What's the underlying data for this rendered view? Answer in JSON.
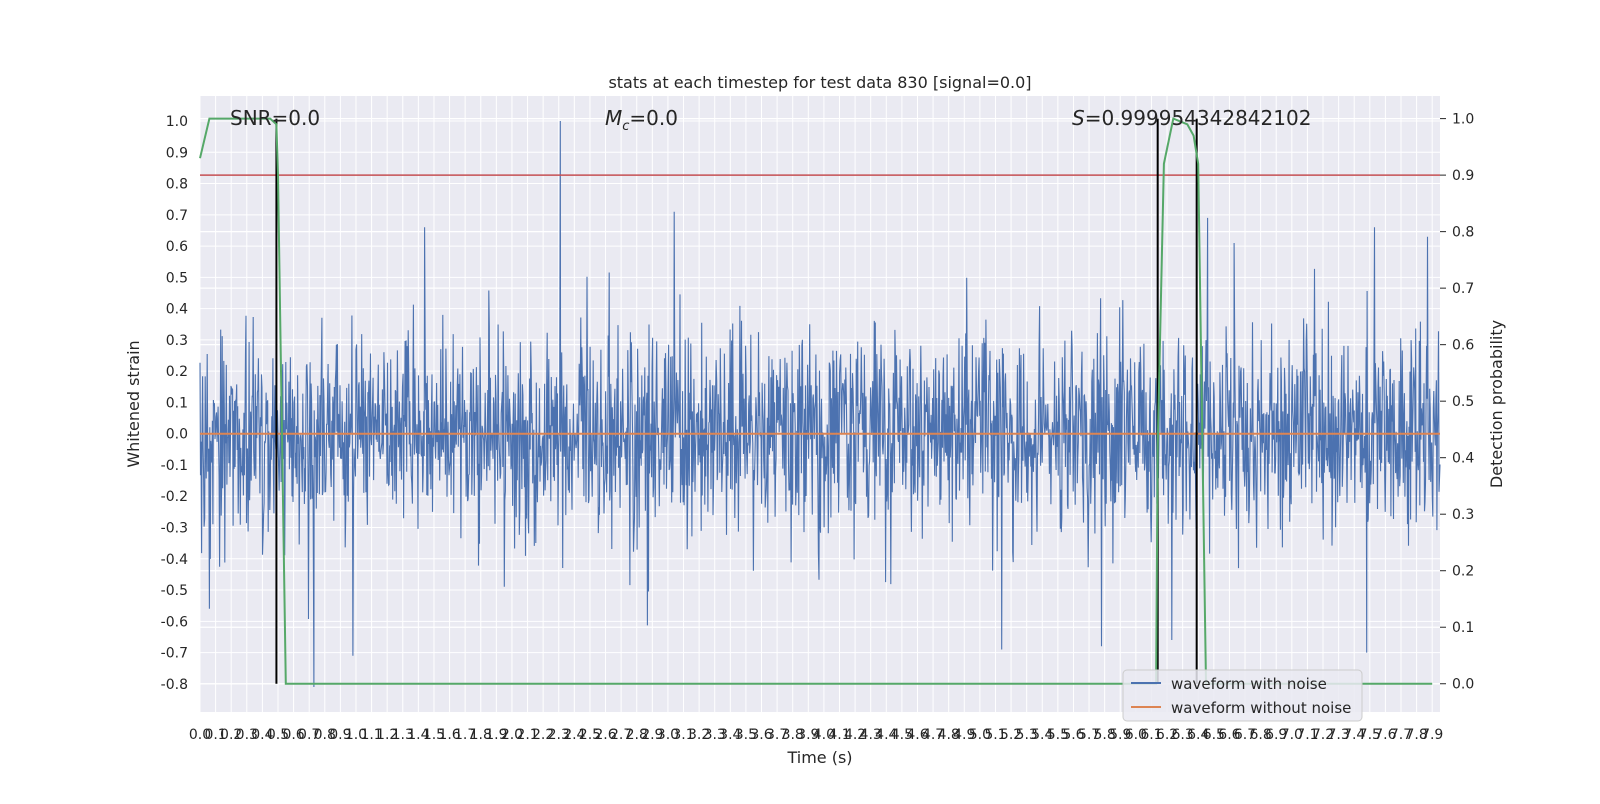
{
  "colors": {
    "background": "#ffffff",
    "plot_bg": "#eaeaf2",
    "grid": "#ffffff",
    "noisy": "#4c72b0",
    "clean": "#dd8452",
    "prob": "#55a868",
    "threshold": "#c44e52",
    "marker": "#000000",
    "text": "#262626"
  },
  "chart_data": {
    "type": "line",
    "title": "stats at each timestep for test data 830 [signal=0.0]",
    "xlabel": "Time (s)",
    "ylabel": "Whitened strain",
    "y2label": "Detection probability",
    "annotations": {
      "snr": "SNR=0.0",
      "mc_symbol": "M",
      "mc_sub": "c",
      "mc_value": "=0.0",
      "s_symbol": "S",
      "s_value": "=0.999954342842102"
    },
    "xlim": [
      0.0,
      7.95
    ],
    "ylim": [
      -0.89,
      1.08
    ],
    "y2lim": [
      -0.05,
      1.04
    ],
    "grid": true,
    "legend_position": "lower-right",
    "x_ticks": [
      "0.0",
      "0.1",
      "0.2",
      "0.3",
      "0.4",
      "0.5",
      "0.6",
      "0.7",
      "0.8",
      "0.9",
      "1.0",
      "1.1",
      "1.2",
      "1.3",
      "1.4",
      "1.5",
      "1.6",
      "1.7",
      "1.8",
      "1.9",
      "2.0",
      "2.1",
      "2.2",
      "2.3",
      "2.4",
      "2.5",
      "2.6",
      "2.7",
      "2.8",
      "2.9",
      "3.0",
      "3.1",
      "3.2",
      "3.3",
      "3.4",
      "3.5",
      "3.6",
      "3.7",
      "3.8",
      "3.9",
      "4.0",
      "4.1",
      "4.2",
      "4.3",
      "4.4",
      "4.5",
      "4.6",
      "4.7",
      "4.8",
      "4.9",
      "5.0",
      "5.1",
      "5.2",
      "5.3",
      "5.4",
      "5.5",
      "5.6",
      "5.7",
      "5.8",
      "5.9",
      "6.0",
      "6.1",
      "6.2",
      "6.3",
      "6.4",
      "6.5",
      "6.6",
      "6.7",
      "6.8",
      "6.9",
      "7.0",
      "7.1",
      "7.2",
      "7.3",
      "7.4",
      "7.5",
      "7.6",
      "7.7",
      "7.8",
      "7.9"
    ],
    "y_ticks": [
      "-0.8",
      "-0.7",
      "-0.6",
      "-0.5",
      "-0.4",
      "-0.3",
      "-0.2",
      "-0.1",
      "0.0",
      "0.1",
      "0.2",
      "0.3",
      "0.4",
      "0.5",
      "0.6",
      "0.7",
      "0.8",
      "0.9",
      "1.0"
    ],
    "y2_ticks": [
      "0.0",
      "0.1",
      "0.2",
      "0.3",
      "0.4",
      "0.5",
      "0.6",
      "0.7",
      "0.8",
      "0.9",
      "1.0"
    ],
    "series": [
      {
        "name": "waveform with noise",
        "kind": "noise",
        "envelope_std": 0.16,
        "peak_points": [
          {
            "x": 2.31,
            "y": 1.0
          },
          {
            "x": 3.04,
            "y": 0.71
          },
          {
            "x": 1.44,
            "y": 0.66
          },
          {
            "x": 7.53,
            "y": 0.66
          },
          {
            "x": 7.87,
            "y": 0.63
          },
          {
            "x": 6.46,
            "y": 0.69
          },
          {
            "x": 6.63,
            "y": 0.61
          },
          {
            "x": 0.73,
            "y": -0.81
          },
          {
            "x": 0.98,
            "y": -0.71
          },
          {
            "x": 5.14,
            "y": -0.69
          },
          {
            "x": 7.48,
            "y": -0.7
          },
          {
            "x": 5.78,
            "y": -0.68
          },
          {
            "x": 0.06,
            "y": -0.56
          }
        ]
      },
      {
        "name": "waveform without noise",
        "kind": "flat",
        "value": 0.0
      },
      {
        "name": "detection probability",
        "kind": "probability",
        "x": [
          0.0,
          0.06,
          0.15,
          0.45,
          0.49,
          0.5,
          0.55,
          7.95
        ],
        "y": [
          0.93,
          1.0,
          1.0,
          1.0,
          0.99,
          0.9,
          0.0,
          0.0
        ],
        "x_region2": [
          6.13,
          6.14,
          6.18,
          6.24,
          6.33,
          6.37,
          6.4,
          6.45
        ],
        "y_region2": [
          0.0,
          0.42,
          0.92,
          1.0,
          0.99,
          0.97,
          0.92,
          0.0
        ]
      }
    ],
    "threshold_prob": 0.9,
    "vertical_markers": [
      0.49,
      6.14,
      6.39
    ]
  }
}
